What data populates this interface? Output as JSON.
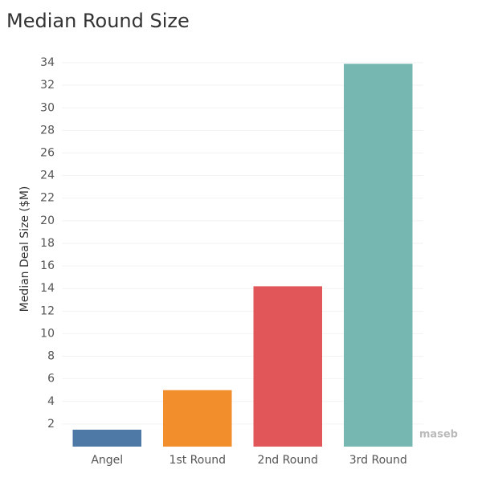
{
  "chart_data": {
    "type": "bar",
    "title": "Median Round Size",
    "y_label": "Median Deal Size ($M)",
    "categories": [
      "Angel",
      "1st Round",
      "2nd Round",
      "3rd Round"
    ],
    "values": [
      1.5,
      5,
      14.2,
      33.9
    ],
    "colors": [
      "#4e79a7",
      "#f28e2b",
      "#e15759",
      "#76b7b2"
    ],
    "ylim": [
      0,
      35
    ],
    "yticks": [
      2,
      4,
      6,
      8,
      10,
      12,
      14,
      16,
      18,
      20,
      22,
      24,
      26,
      28,
      30,
      32,
      34
    ],
    "grid": true,
    "watermark": "maseb"
  }
}
